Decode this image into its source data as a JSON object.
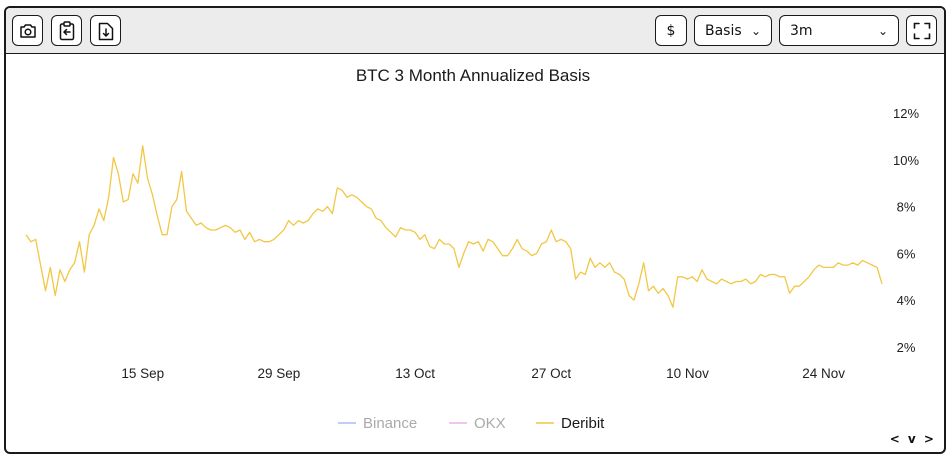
{
  "toolbar": {
    "currency_label": "$",
    "metric_label": "Basis",
    "range_label": "3m",
    "icons": [
      "camera-icon",
      "clipboard-icon",
      "download-icon",
      "fullscreen-icon"
    ]
  },
  "nav": {
    "arrows_label": "< v >"
  },
  "chart_data": {
    "type": "line",
    "title": "BTC 3 Month Annualized Basis",
    "xlabel": "",
    "ylabel": "",
    "x_ticks": [
      "15 Sep",
      "29 Sep",
      "13 Oct",
      "27 Oct",
      "10 Nov",
      "24 Nov"
    ],
    "y_ticks": [
      "2%",
      "4%",
      "6%",
      "8%",
      "10%",
      "12%"
    ],
    "ylim": [
      2,
      12
    ],
    "grid": false,
    "legend_position": "bottom",
    "series": [
      {
        "name": "Binance",
        "color": "#a9bff2",
        "values": []
      },
      {
        "name": "OKX",
        "color": "#ebb3ec",
        "values": []
      },
      {
        "name": "Deribit",
        "color": "#f2c744",
        "x_start": "2023-09-03",
        "x_step_hours": 12,
        "values": [
          6.8,
          6.5,
          6.6,
          5.5,
          4.4,
          5.4,
          4.2,
          5.3,
          4.8,
          5.3,
          5.6,
          6.5,
          5.2,
          6.8,
          7.2,
          7.9,
          7.4,
          8.4,
          10.1,
          9.4,
          8.2,
          8.3,
          9.4,
          9.0,
          10.6,
          9.2,
          8.5,
          7.6,
          6.8,
          6.8,
          8.0,
          8.3,
          9.5,
          7.8,
          7.5,
          7.2,
          7.3,
          7.1,
          7.0,
          7.0,
          7.1,
          7.2,
          7.1,
          6.9,
          7.0,
          6.6,
          6.9,
          6.5,
          6.6,
          6.5,
          6.5,
          6.6,
          6.8,
          7.0,
          7.4,
          7.2,
          7.4,
          7.3,
          7.4,
          7.7,
          7.9,
          7.8,
          8.0,
          7.7,
          8.8,
          8.7,
          8.4,
          8.5,
          8.4,
          8.2,
          8.0,
          7.9,
          7.5,
          7.4,
          7.1,
          6.9,
          6.7,
          7.1,
          7.0,
          7.0,
          6.9,
          6.6,
          6.8,
          6.3,
          6.2,
          6.6,
          6.4,
          6.4,
          6.2,
          5.4,
          6.0,
          6.5,
          6.4,
          6.5,
          6.1,
          6.6,
          6.5,
          6.2,
          5.9,
          5.9,
          6.2,
          6.6,
          6.2,
          6.1,
          5.9,
          6.0,
          6.4,
          6.5,
          7.0,
          6.5,
          6.6,
          6.5,
          6.2,
          4.9,
          5.2,
          5.1,
          5.8,
          5.4,
          5.6,
          5.4,
          5.6,
          5.2,
          5.1,
          4.9,
          4.2,
          4.0,
          4.7,
          5.6,
          4.4,
          4.6,
          4.3,
          4.5,
          4.2,
          3.7,
          5.0,
          5.0,
          4.9,
          5.0,
          4.8,
          5.3,
          4.9,
          4.8,
          4.7,
          4.9,
          4.8,
          4.7,
          4.8,
          4.8,
          4.9,
          4.7,
          4.8,
          5.1,
          5.0,
          5.1,
          5.1,
          5.0,
          5.0,
          4.3,
          4.6,
          4.6,
          4.8,
          5.0,
          5.3,
          5.5,
          5.4,
          5.4,
          5.4,
          5.6,
          5.5,
          5.5,
          5.6,
          5.5,
          5.7,
          5.6,
          5.5,
          5.4,
          4.7
        ]
      }
    ]
  }
}
